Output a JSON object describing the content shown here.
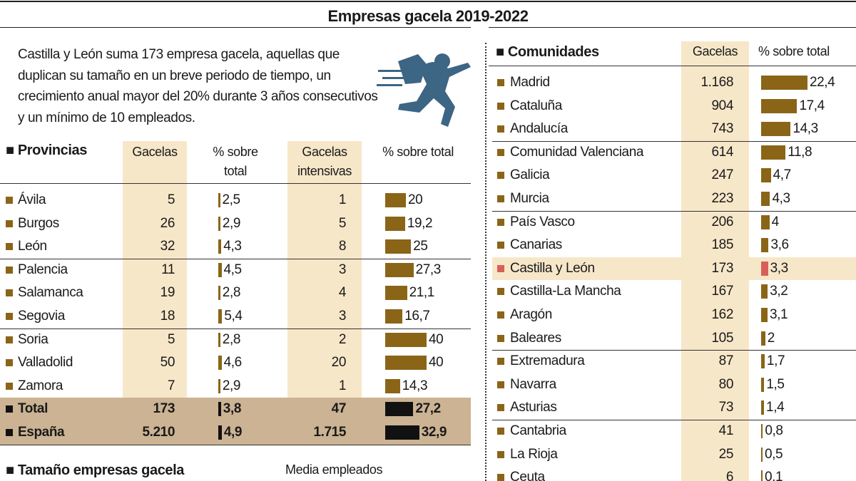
{
  "header": {
    "title": "Empresas gacela 2019-2022"
  },
  "intro": "Castilla y León suma 173 empresa gacela, aquellas que duplican su tamaño en un breve periodo de tiempo, un crecimiento anual mayor del 20% durante 3 años consecutivos y un mínimo de 10 empleados.",
  "provinces": {
    "heading": "Provincias",
    "columns": [
      "Gacelas",
      "% sobre total",
      "Gacelas intensivas",
      "% sobre total"
    ],
    "rows": [
      {
        "name": "Ávila",
        "gacelas": "5",
        "pct": {
          "value": 2.5,
          "label": "2,5"
        },
        "intensivas": "1",
        "pct_intensivas": 20
      },
      {
        "name": "Burgos",
        "gacelas": "26",
        "pct": {
          "value": 2.9,
          "label": "2,9"
        },
        "intensivas": "5",
        "pct_intensivas": {
          "value": 19.2,
          "label": "19,2"
        }
      },
      {
        "name": "León",
        "gacelas": "32",
        "pct": {
          "value": 4.3,
          "label": "4,3"
        },
        "intensivas": "8",
        "pct_intensivas": 25
      },
      {
        "name": "Palencia",
        "gacelas": "11",
        "pct": {
          "value": 4.5,
          "label": "4,5"
        },
        "intensivas": "3",
        "pct_intensivas": {
          "value": 27.3,
          "label": "27,3"
        }
      },
      {
        "name": "Salamanca",
        "gacelas": "19",
        "pct": {
          "value": 2.8,
          "label": "2,8"
        },
        "intensivas": "4",
        "pct_intensivas": {
          "value": 21.1,
          "label": "21,1"
        }
      },
      {
        "name": "Segovia",
        "gacelas": "18",
        "pct": {
          "value": 5.4,
          "label": "5,4"
        },
        "intensivas": "3",
        "pct_intensivas": {
          "value": 16.7,
          "label": "16,7"
        }
      },
      {
        "name": "Soria",
        "gacelas": "5",
        "pct": {
          "value": 2.8,
          "label": "2,8"
        },
        "intensivas": "2",
        "pct_intensivas": 40
      },
      {
        "name": "Valladolid",
        "gacelas": "50",
        "pct": {
          "value": 4.6,
          "label": "4,6"
        },
        "intensivas": "20",
        "pct_intensivas": 40
      },
      {
        "name": "Zamora",
        "gacelas": "7",
        "pct": {
          "value": 2.9,
          "label": "2,9"
        },
        "intensivas": "1",
        "pct_intensivas": {
          "value": 14.3,
          "label": "14,3"
        }
      },
      {
        "name": "Total",
        "gacelas": "173",
        "pct": {
          "value": 3.8,
          "label": "3,8"
        },
        "intensivas": "47",
        "pct_intensivas": {
          "value": 27.2,
          "label": "27,2"
        }
      },
      {
        "name": "España",
        "gacelas": "5.210",
        "pct": {
          "value": 4.9,
          "label": "4,9"
        },
        "intensivas": "1.715",
        "pct_intensivas": {
          "value": 32.9,
          "label": "32,9"
        }
      }
    ]
  },
  "communities": {
    "heading": "Comunidades",
    "columns": [
      "Gacelas",
      "% sobre total"
    ],
    "rows": [
      {
        "name": "Madrid",
        "gacelas": "1.168",
        "pct": {
          "value": 22.4,
          "label": "22,4"
        }
      },
      {
        "name": "Cataluña",
        "gacelas": "904",
        "pct": {
          "value": 17.4,
          "label": "17,4"
        }
      },
      {
        "name": "Andalucía",
        "gacelas": "743",
        "pct": {
          "value": 14.3,
          "label": "14,3"
        }
      },
      {
        "name": "Comunidad Valenciana",
        "gacelas": "614",
        "pct": {
          "value": 11.8,
          "label": "11,8"
        }
      },
      {
        "name": "Galicia",
        "gacelas": "247",
        "pct": {
          "value": 4.7,
          "label": "4,7"
        }
      },
      {
        "name": "Murcia",
        "gacelas": "223",
        "pct": {
          "value": 4.3,
          "label": "4,3"
        }
      },
      {
        "name": "País Vasco",
        "gacelas": "206",
        "pct": 4
      },
      {
        "name": "Canarias",
        "gacelas": "185",
        "pct": {
          "value": 3.6,
          "label": "3,6"
        }
      },
      {
        "name": "Castilla y León",
        "gacelas": "173",
        "pct": {
          "value": 3.3,
          "label": "3,3"
        }
      },
      {
        "name": "Castilla-La Mancha",
        "gacelas": "167",
        "pct": {
          "value": 3.2,
          "label": "3,2"
        }
      },
      {
        "name": "Aragón",
        "gacelas": "162",
        "pct": {
          "value": 3.1,
          "label": "3,1"
        }
      },
      {
        "name": "Baleares",
        "gacelas": "105",
        "pct": 2
      },
      {
        "name": "Extremadura",
        "gacelas": "87",
        "pct": {
          "value": 1.7,
          "label": "1,7"
        }
      },
      {
        "name": "Navarra",
        "gacelas": "80",
        "pct": {
          "value": 1.5,
          "label": "1,5"
        }
      },
      {
        "name": "Asturias",
        "gacelas": "73",
        "pct": {
          "value": 1.4,
          "label": "1,4"
        }
      },
      {
        "name": "Cantabria",
        "gacelas": "41",
        "pct": {
          "value": 0.8,
          "label": "0,8"
        }
      },
      {
        "name": "La Rioja",
        "gacelas": "25",
        "pct": {
          "value": 0.5,
          "label": "0,5"
        }
      },
      {
        "name": "Ceuta",
        "gacelas": "6",
        "pct": {
          "value": 0.1,
          "label": "0,1"
        }
      }
    ]
  },
  "footer": {
    "heading": "Tamaño empresas gacela",
    "note": "Media empleados"
  }
}
